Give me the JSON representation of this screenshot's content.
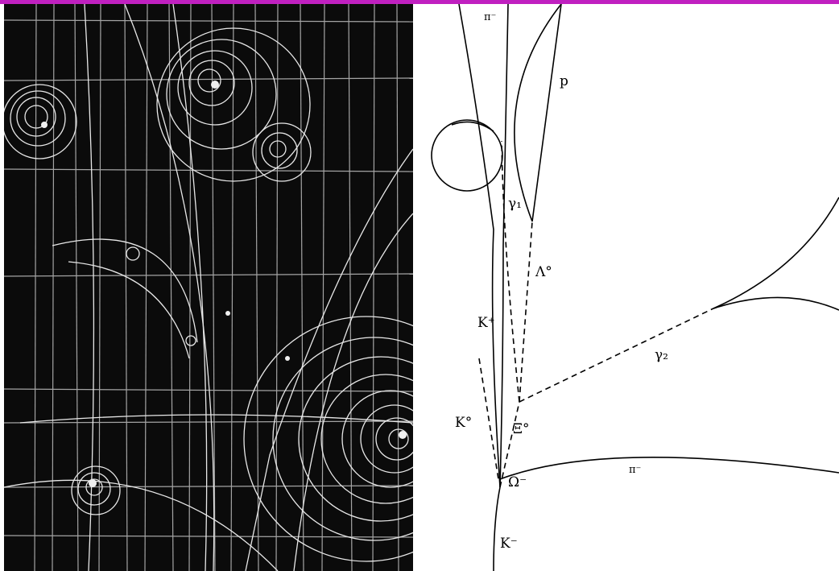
{
  "theme": {
    "accent": "#c020c0",
    "photo_bg": "#0b0b0b",
    "track": "#e8e8e8",
    "ink": "#000000"
  },
  "photo": {
    "icon": "bubble-chamber-photograph"
  },
  "labels": {
    "pi_top": "π⁻",
    "p": "p",
    "gamma1": "γ₁",
    "lambda0": "Λ°",
    "kplus": "K⁺",
    "gamma2": "γ₂",
    "k0": "K°",
    "xi0": "Ξ°",
    "pi_mid": "π⁻",
    "omega": "Ω⁻",
    "kminus": "K⁻"
  }
}
